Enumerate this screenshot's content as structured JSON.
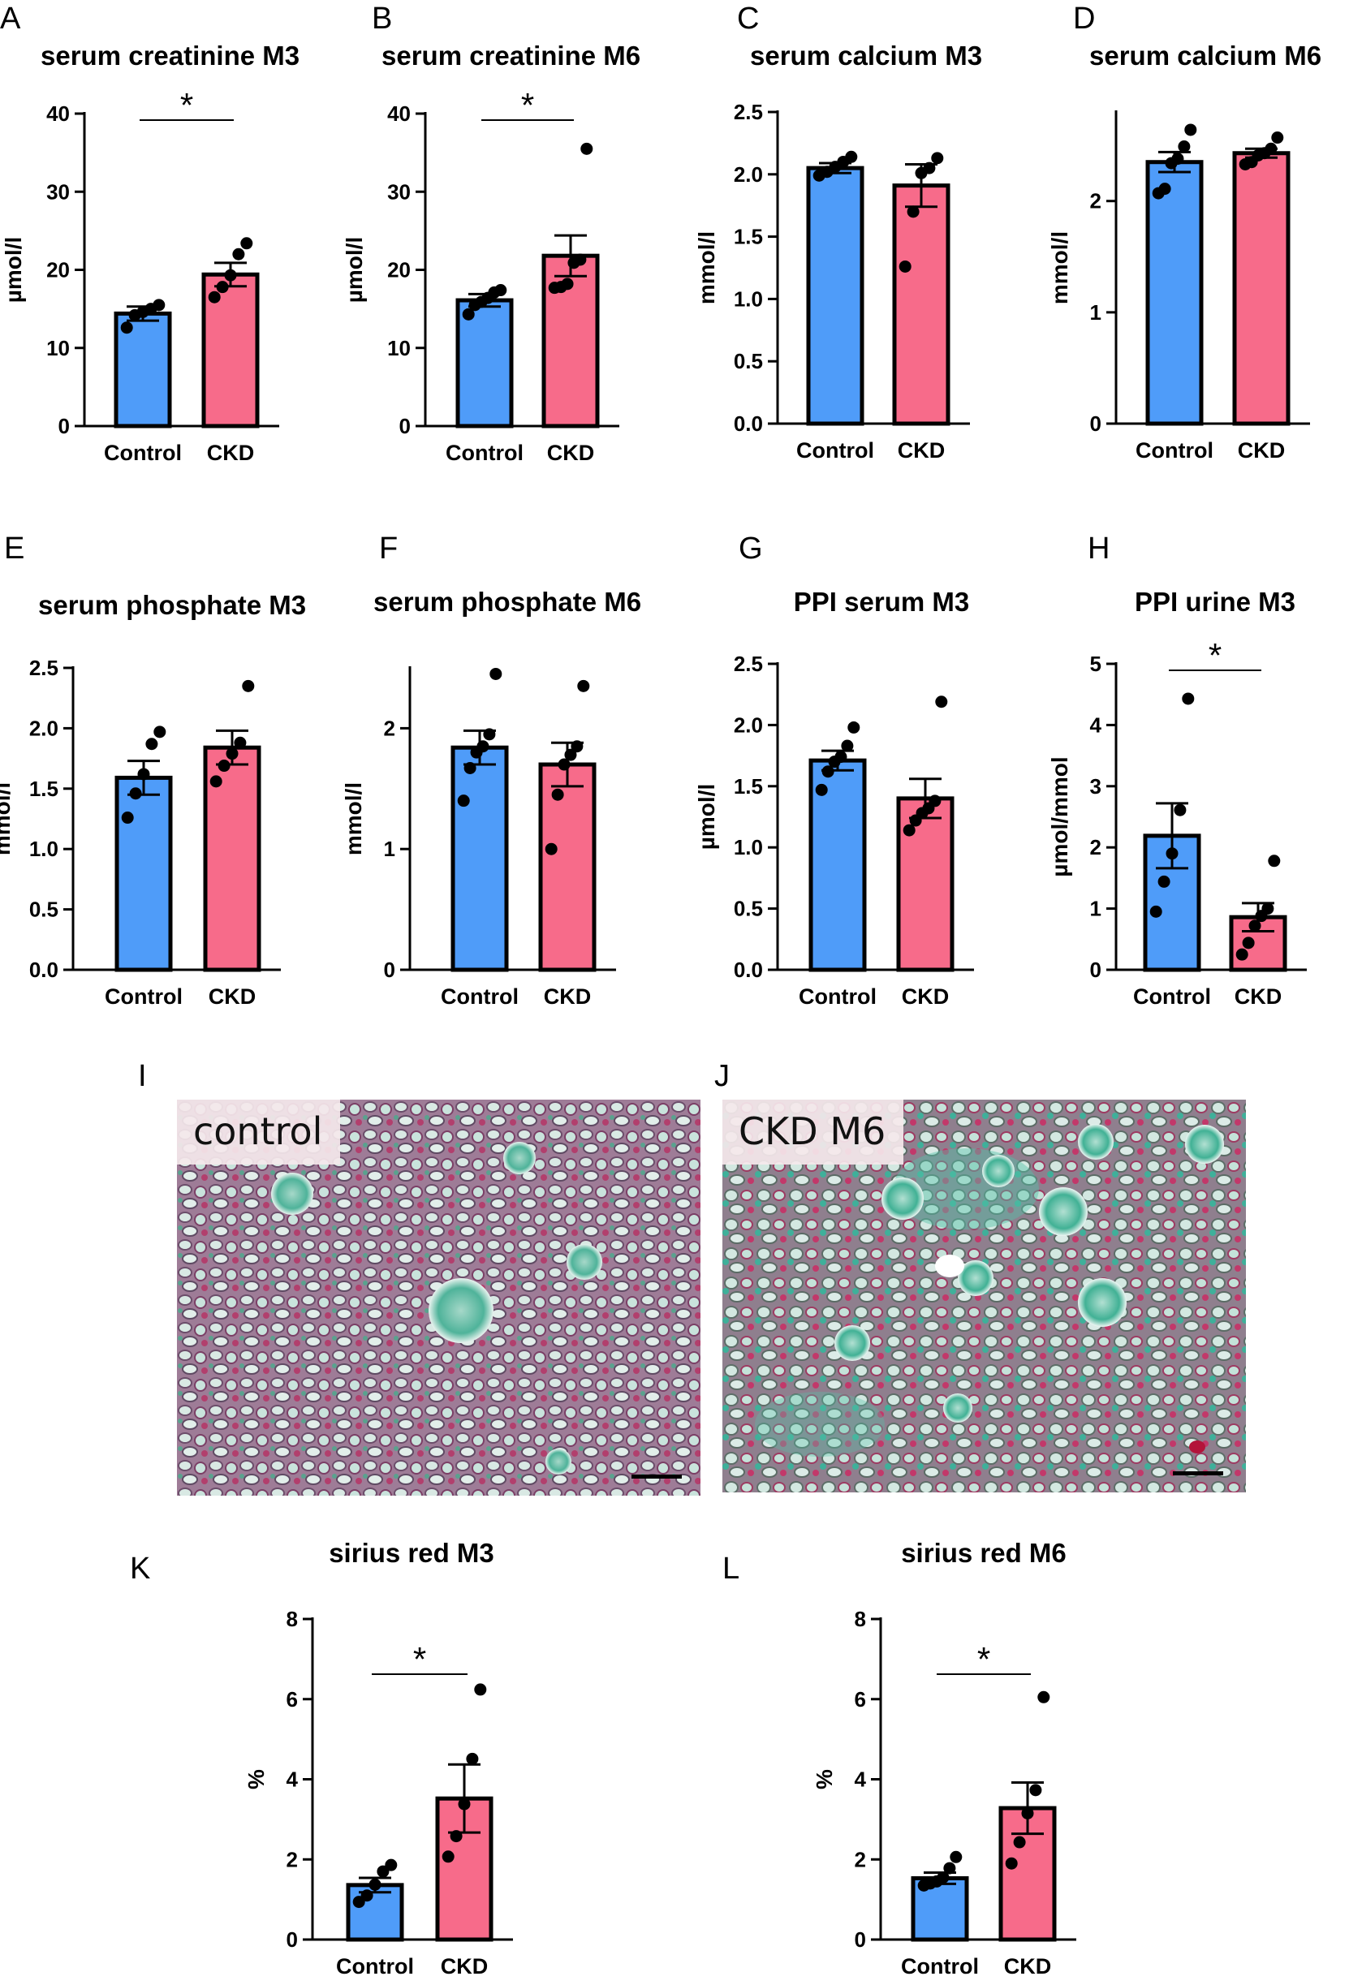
{
  "panels": [
    {
      "letter": "A",
      "title": "serum creatinine M3",
      "ylabel": "µmol/l",
      "ylim": [
        0,
        40
      ],
      "ticks": [
        "0",
        "10",
        "20",
        "30",
        "40"
      ],
      "categories": [
        "Control",
        "CKD"
      ],
      "series": [
        {
          "group": "Control",
          "mean": 14.4,
          "sem": 0.9,
          "points": [
            12.6,
            14.2,
            14.6,
            15.0,
            15.5
          ]
        },
        {
          "group": "CKD",
          "mean": 19.4,
          "sem": 1.5,
          "points": [
            16.5,
            17.8,
            19.3,
            22.0,
            23.4
          ]
        }
      ],
      "significance": "*"
    },
    {
      "letter": "B",
      "title": "serum creatinine M6",
      "ylabel": "µmol/l",
      "ylim": [
        0,
        40
      ],
      "ticks": [
        "0",
        "10",
        "20",
        "30",
        "40"
      ],
      "categories": [
        "Control",
        "CKD"
      ],
      "series": [
        {
          "group": "Control",
          "mean": 16.1,
          "sem": 0.8,
          "points": [
            14.3,
            15.5,
            15.9,
            16.4,
            17.1,
            17.4
          ]
        },
        {
          "group": "CKD",
          "mean": 21.8,
          "sem": 2.6,
          "points": [
            17.7,
            17.8,
            18.2,
            20.9,
            21.3,
            35.5
          ]
        }
      ],
      "significance": "*"
    },
    {
      "letter": "C",
      "title": "serum calcium M3",
      "ylabel": "mmol/l",
      "ylim": [
        0,
        2.5
      ],
      "ticks": [
        "0.0",
        "0.5",
        "1.0",
        "1.5",
        "2.0",
        "2.5"
      ],
      "categories": [
        "Control",
        "CKD"
      ],
      "series": [
        {
          "group": "Control",
          "mean": 2.05,
          "sem": 0.04,
          "points": [
            1.99,
            2.02,
            2.06,
            2.1,
            2.14
          ]
        },
        {
          "group": "CKD",
          "mean": 1.91,
          "sem": 0.17,
          "points": [
            1.26,
            1.7,
            2.01,
            2.05,
            2.13
          ]
        }
      ],
      "significance": ""
    },
    {
      "letter": "D",
      "title": "serum calcium M6",
      "ylabel": "mmol/l",
      "ylim": [
        0,
        2.8
      ],
      "ticks": [
        "0",
        "1",
        "2"
      ],
      "categories": [
        "Control",
        "CKD"
      ],
      "series": [
        {
          "group": "Control",
          "mean": 2.35,
          "sem": 0.09,
          "points": [
            2.07,
            2.11,
            2.34,
            2.38,
            2.49,
            2.64
          ]
        },
        {
          "group": "CKD",
          "mean": 2.43,
          "sem": 0.04,
          "points": [
            2.33,
            2.35,
            2.41,
            2.43,
            2.47,
            2.57
          ]
        }
      ],
      "significance": ""
    },
    {
      "letter": "E",
      "title": "serum phosphate M3",
      "ylabel": "mmol/l",
      "ylim": [
        0,
        2.5
      ],
      "ticks": [
        "0.0",
        "0.5",
        "1.0",
        "1.5",
        "2.0",
        "2.5"
      ],
      "categories": [
        "Control",
        "CKD"
      ],
      "series": [
        {
          "group": "Control",
          "mean": 1.59,
          "sem": 0.14,
          "points": [
            1.26,
            1.46,
            1.62,
            1.87,
            1.97
          ]
        },
        {
          "group": "CKD",
          "mean": 1.84,
          "sem": 0.14,
          "points": [
            1.56,
            1.69,
            1.79,
            1.88,
            2.35
          ]
        }
      ],
      "significance": ""
    },
    {
      "letter": "F",
      "title": "serum phosphate M6",
      "ylabel": "mmol/l",
      "ylim": [
        0,
        2.5
      ],
      "ticks": [
        "0",
        "1",
        "2"
      ],
      "categories": [
        "Control",
        "CKD"
      ],
      "series": [
        {
          "group": "Control",
          "mean": 1.84,
          "sem": 0.14,
          "points": [
            1.4,
            1.67,
            1.8,
            1.85,
            1.95,
            2.45
          ]
        },
        {
          "group": "CKD",
          "mean": 1.7,
          "sem": 0.18,
          "points": [
            1.0,
            1.45,
            1.7,
            1.78,
            1.85,
            2.35
          ]
        }
      ],
      "significance": ""
    },
    {
      "letter": "G",
      "title": "PPI serum M3",
      "ylabel": "µmol/l",
      "ylim": [
        0,
        2.5
      ],
      "ticks": [
        "0.0",
        "0.5",
        "1.0",
        "1.5",
        "2.0",
        "2.5"
      ],
      "categories": [
        "Control",
        "CKD"
      ],
      "series": [
        {
          "group": "Control",
          "mean": 1.71,
          "sem": 0.08,
          "points": [
            1.47,
            1.62,
            1.7,
            1.74,
            1.83,
            1.98
          ]
        },
        {
          "group": "CKD",
          "mean": 1.4,
          "sem": 0.16,
          "points": [
            1.14,
            1.22,
            1.28,
            1.32,
            1.38,
            2.19
          ]
        }
      ],
      "significance": ""
    },
    {
      "letter": "H",
      "title": "PPI urine M3",
      "ylabel": "µmol/mmol",
      "ylim": [
        0,
        5
      ],
      "ticks": [
        "0",
        "1",
        "2",
        "3",
        "4",
        "5"
      ],
      "categories": [
        "Control",
        "CKD"
      ],
      "series": [
        {
          "group": "Control",
          "mean": 2.19,
          "sem": 0.53,
          "points": [
            0.95,
            1.44,
            1.9,
            2.61,
            4.43
          ]
        },
        {
          "group": "CKD",
          "mean": 0.86,
          "sem": 0.23,
          "points": [
            0.25,
            0.44,
            0.72,
            0.88,
            1.0,
            1.78
          ]
        }
      ],
      "significance": "*"
    },
    {
      "letter": "K",
      "title": "sirius red M3",
      "ylabel": "%",
      "ylim": [
        0,
        8
      ],
      "ticks": [
        "0",
        "2",
        "4",
        "6",
        "8"
      ],
      "categories": [
        "Control",
        "CKD"
      ],
      "series": [
        {
          "group": "Control",
          "mean": 1.36,
          "sem": 0.18,
          "points": [
            0.94,
            1.1,
            1.37,
            1.7,
            1.86
          ]
        },
        {
          "group": "CKD",
          "mean": 3.52,
          "sem": 0.85,
          "points": [
            2.07,
            2.58,
            3.38,
            4.51,
            6.24
          ]
        }
      ],
      "significance": "*"
    },
    {
      "letter": "L",
      "title": "sirius red M6",
      "ylabel": "%",
      "ylim": [
        0,
        8
      ],
      "ticks": [
        "0",
        "2",
        "4",
        "6",
        "8"
      ],
      "categories": [
        "Control",
        "CKD"
      ],
      "series": [
        {
          "group": "Control",
          "mean": 1.53,
          "sem": 0.14,
          "points": [
            1.35,
            1.4,
            1.45,
            1.55,
            1.78,
            2.06
          ]
        },
        {
          "group": "CKD",
          "mean": 3.28,
          "sem": 0.64,
          "points": [
            1.9,
            2.43,
            3.15,
            3.73,
            6.05
          ]
        }
      ],
      "significance": "*"
    }
  ],
  "images": [
    {
      "letter": "I",
      "label": "control"
    },
    {
      "letter": "J",
      "label": "CKD M6"
    }
  ],
  "colors": {
    "control": "#4f9cf9",
    "ckd": "#f76b8a",
    "text": "#000000"
  },
  "chart_data": [
    {
      "type": "bar",
      "title": "serum creatinine M3",
      "ylabel": "µmol/l",
      "categories": [
        "Control",
        "CKD"
      ],
      "values": [
        14.4,
        19.4
      ],
      "ylim": [
        0,
        40
      ]
    },
    {
      "type": "bar",
      "title": "serum creatinine M6",
      "ylabel": "µmol/l",
      "categories": [
        "Control",
        "CKD"
      ],
      "values": [
        16.1,
        21.8
      ],
      "ylim": [
        0,
        40
      ]
    },
    {
      "type": "bar",
      "title": "serum calcium M3",
      "ylabel": "mmol/l",
      "categories": [
        "Control",
        "CKD"
      ],
      "values": [
        2.05,
        1.91
      ],
      "ylim": [
        0,
        2.5
      ]
    },
    {
      "type": "bar",
      "title": "serum calcium M6",
      "ylabel": "mmol/l",
      "categories": [
        "Control",
        "CKD"
      ],
      "values": [
        2.35,
        2.43
      ],
      "ylim": [
        0,
        2.8
      ]
    },
    {
      "type": "bar",
      "title": "serum phosphate M3",
      "ylabel": "mmol/l",
      "categories": [
        "Control",
        "CKD"
      ],
      "values": [
        1.59,
        1.84
      ],
      "ylim": [
        0,
        2.5
      ]
    },
    {
      "type": "bar",
      "title": "serum phosphate M6",
      "ylabel": "mmol/l",
      "categories": [
        "Control",
        "CKD"
      ],
      "values": [
        1.84,
        1.7
      ],
      "ylim": [
        0,
        2.5
      ]
    },
    {
      "type": "bar",
      "title": "PPI serum M3",
      "ylabel": "µmol/l",
      "categories": [
        "Control",
        "CKD"
      ],
      "values": [
        1.71,
        1.4
      ],
      "ylim": [
        0,
        2.5
      ]
    },
    {
      "type": "bar",
      "title": "PPI urine M3",
      "ylabel": "µmol/mmol",
      "categories": [
        "Control",
        "CKD"
      ],
      "values": [
        2.19,
        0.86
      ],
      "ylim": [
        0,
        5
      ]
    },
    {
      "type": "bar",
      "title": "sirius red M3",
      "ylabel": "%",
      "categories": [
        "Control",
        "CKD"
      ],
      "values": [
        1.36,
        3.52
      ],
      "ylim": [
        0,
        8
      ]
    },
    {
      "type": "bar",
      "title": "sirius red M6",
      "ylabel": "%",
      "categories": [
        "Control",
        "CKD"
      ],
      "values": [
        1.53,
        3.28
      ],
      "ylim": [
        0,
        8
      ]
    }
  ]
}
